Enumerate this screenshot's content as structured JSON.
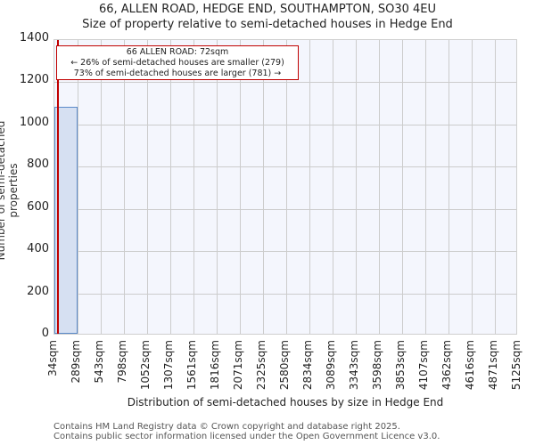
{
  "title": {
    "line1": "66, ALLEN ROAD, HEDGE END, SOUTHAMPTON, SO30 4EU",
    "line2": "Size of property relative to semi-detached houses in Hedge End"
  },
  "annotation": {
    "line1": "66 ALLEN ROAD: 72sqm",
    "line2": "← 26% of semi-detached houses are smaller (279)",
    "line3": "73% of semi-detached houses are larger (781) →"
  },
  "axes": {
    "ylabel": "Number of semi-detached properties",
    "xlabel": "Distribution of semi-detached houses by size in Hedge End",
    "yticks": [
      "0",
      "200",
      "400",
      "600",
      "800",
      "1000",
      "1200",
      "1400"
    ],
    "xticks": [
      "34sqm",
      "289sqm",
      "543sqm",
      "798sqm",
      "1052sqm",
      "1307sqm",
      "1561sqm",
      "1816sqm",
      "2071sqm",
      "2325sqm",
      "2580sqm",
      "2834sqm",
      "3089sqm",
      "3343sqm",
      "3598sqm",
      "3853sqm",
      "4107sqm",
      "4362sqm",
      "4616sqm",
      "4871sqm",
      "5125sqm"
    ]
  },
  "footer": {
    "line1": "Contains HM Land Registry data © Crown copyright and database right 2025.",
    "line2": "Contains public sector information licensed under the Open Government Licence v3.0."
  },
  "colors": {
    "bar_fill": "#d6e0f2",
    "bar_edge": "#5b8ac9",
    "marker": "#c00000",
    "plot_bg": "#f4f6fd"
  },
  "chart_data": {
    "type": "bar",
    "title": "66, ALLEN ROAD, HEDGE END, SOUTHAMPTON, SO30 4EU — Size of property relative to semi-detached houses in Hedge End",
    "xlabel": "Distribution of semi-detached houses by size in Hedge End",
    "ylabel": "Number of semi-detached properties",
    "categories": [
      "34sqm",
      "289sqm",
      "543sqm",
      "798sqm",
      "1052sqm",
      "1307sqm",
      "1561sqm",
      "1816sqm",
      "2071sqm",
      "2325sqm",
      "2580sqm",
      "2834sqm",
      "3089sqm",
      "3343sqm",
      "3598sqm",
      "3853sqm",
      "4107sqm",
      "4362sqm",
      "4616sqm",
      "4871sqm"
    ],
    "values": [
      1075,
      0,
      0,
      0,
      0,
      0,
      0,
      0,
      0,
      0,
      0,
      0,
      0,
      0,
      0,
      0,
      0,
      0,
      0,
      0
    ],
    "bin_edges": [
      34,
      289,
      543,
      798,
      1052,
      1307,
      1561,
      1816,
      2071,
      2325,
      2580,
      2834,
      3089,
      3343,
      3598,
      3853,
      4107,
      4362,
      4616,
      4871,
      5125
    ],
    "ylim": [
      0,
      1400
    ],
    "grid": true,
    "marker_line": {
      "x": 72,
      "label": "66 ALLEN ROAD: 72sqm"
    },
    "annotations": [
      "66 ALLEN ROAD: 72sqm",
      "← 26% of semi-detached houses are smaller (279)",
      "73% of semi-detached houses are larger (781) →"
    ]
  }
}
